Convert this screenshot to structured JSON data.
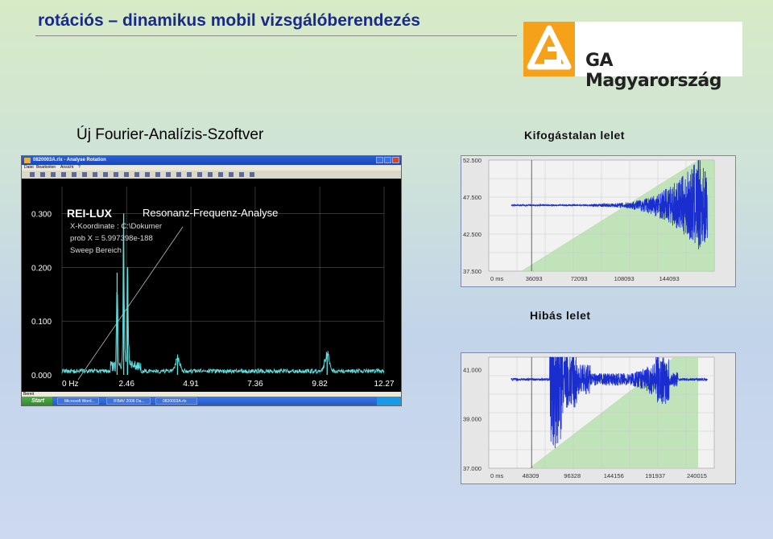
{
  "slide": {
    "title": "rotációs – dinamikus mobil vizsgálóberendezés",
    "logo_text": "GA Magyarország",
    "subtitle_left": "Új Fourier-Analízis-Szoftver",
    "subtitle_good": "Kifogástalan lelet",
    "subtitle_bad": "Hibás lelet"
  },
  "window": {
    "title": "0820003A.rlx - Analyse Rotation",
    "menu": [
      "Datei",
      "Bearbeiten",
      "Ansicht",
      "?"
    ],
    "status_text": "Bereit",
    "taskbar": {
      "start": "Start",
      "items": [
        "Microsoft Word...",
        "IFBAV 2006 Da...",
        "0820003A.rlx"
      ]
    }
  },
  "fft_chart": {
    "brand": "REI-LUX",
    "heading": "Resonanz-Frequenz-Analyse",
    "info_lines": [
      "X-Koordinate : C:\\Dokumer",
      "prob X = 5.997398e-188",
      "Sweep Bereich"
    ],
    "y_ticks": [
      "0.300",
      "0.200",
      "0.100",
      "0.000"
    ],
    "x_ticks": [
      "0 Hz",
      "2.46",
      "4.91",
      "7.36",
      "9.82",
      "12.27"
    ]
  },
  "good_chart": {
    "y_ticks": [
      "52.500",
      "47.500",
      "42.500",
      "37.500"
    ],
    "x_ticks": [
      "0 ms",
      "36093",
      "72093",
      "108093",
      "144093"
    ]
  },
  "bad_chart": {
    "y_ticks": [
      "41.000",
      "39.000",
      "37.000"
    ],
    "x_ticks": [
      "0 ms",
      "48309",
      "96328",
      "144156",
      "191937",
      "240015"
    ]
  },
  "chart_data": [
    {
      "type": "line",
      "x": [
        0,
        2.46,
        4.91,
        7.36,
        9.82,
        12.27
      ],
      "xlim": [
        0,
        12.27
      ],
      "ylim": [
        0,
        0.35
      ],
      "peaks": [
        {
          "x": 2.1,
          "y": 0.19
        },
        {
          "x": 2.35,
          "y": 0.3
        },
        {
          "x": 2.5,
          "y": 0.2
        },
        {
          "x": 4.4,
          "y": 0.03
        },
        {
          "x": 10.1,
          "y": 0.04
        }
      ]
    },
    {
      "type": "line",
      "xlim": [
        0,
        180000
      ],
      "ylim": [
        37.5,
        52.5
      ],
      "baseline": 46.4
    },
    {
      "type": "line",
      "xlim": [
        0,
        260000
      ],
      "ylim": [
        37,
        41.5
      ],
      "baseline": 40.6
    }
  ],
  "colors": {
    "title": "#1a2a8c",
    "logo_orange": "#f5a21a",
    "fft_trace": "#5fe0e0",
    "vib_trace": "#1a2ed0",
    "green_fill": "#b9e0b0"
  }
}
